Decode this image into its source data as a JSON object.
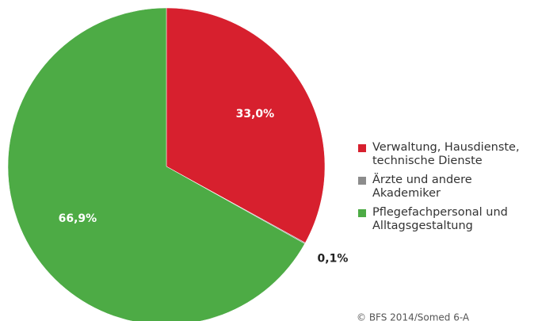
{
  "chart_data": {
    "type": "pie",
    "categories": [
      "Verwaltung, Hausdienste, technische Dienste",
      "Ärzte und andere Akademiker",
      "Pflegefachpersonal und Alltagsgestaltung"
    ],
    "values": [
      33.0,
      0.1,
      66.9
    ],
    "value_labels": [
      "33,0%",
      "0,1%",
      "66,9%"
    ],
    "colors": [
      "#d7202e",
      "#8c8c8c",
      "#4dab45"
    ],
    "legend": "right",
    "source": "© BFS 2014/Somed 6-A"
  }
}
